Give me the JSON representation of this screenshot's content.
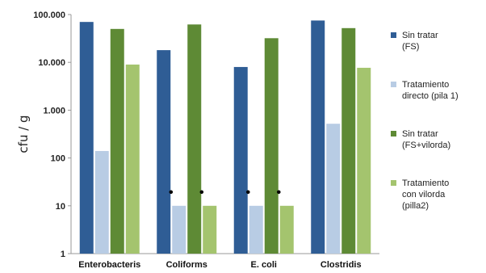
{
  "chart_data": {
    "type": "bar",
    "title": "",
    "xlabel": "",
    "ylabel": "cfu / g",
    "yscale": "log",
    "ylim": [
      1,
      100000
    ],
    "yticks": [
      1,
      10,
      100,
      1000,
      10000,
      100000
    ],
    "ytick_labels": [
      "1",
      "10",
      "100",
      "1.000",
      "10.000",
      "100.000"
    ],
    "grid": false,
    "legend_position": "right",
    "categories": [
      "Enterobacteris",
      "Coliforms",
      "E. coli",
      "Clostridis"
    ],
    "series": [
      {
        "name_lines": [
          "Sin tratar",
          "(FS)"
        ],
        "color": "#2F5D95",
        "values": [
          70000,
          18000,
          8000,
          75000
        ]
      },
      {
        "name_lines": [
          "Tratamiento",
          "directo (pila 1)"
        ],
        "color": "#B8CCE4",
        "values": [
          140,
          10,
          10,
          520
        ]
      },
      {
        "name_lines": [
          "Sin tratar",
          "(FS+vilorda)"
        ],
        "color": "#5E8A35",
        "values": [
          50000,
          62000,
          32000,
          52000
        ]
      },
      {
        "name_lines": [
          "Tratamiento",
          "con vilorda",
          "(pilla2)"
        ],
        "color": "#A4C46E",
        "values": [
          9000,
          10,
          10,
          7700
        ]
      }
    ],
    "annotations": [
      {
        "category": "Coliforms",
        "series_index": 1,
        "text": "•"
      },
      {
        "category": "Coliforms",
        "series_index": 3,
        "text": "•"
      },
      {
        "category": "E. coli",
        "series_index": 1,
        "text": "•"
      },
      {
        "category": "E. coli",
        "series_index": 3,
        "text": "•"
      }
    ]
  }
}
